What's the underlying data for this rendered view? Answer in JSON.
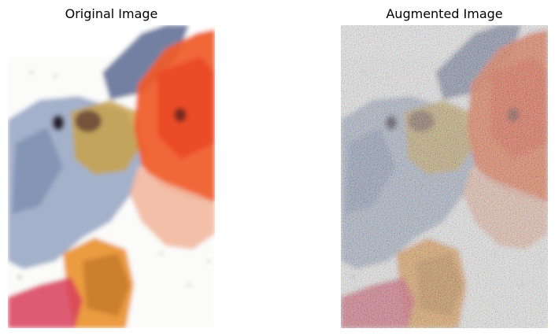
{
  "panels": [
    {
      "title": "Original Image"
    },
    {
      "title": "Augmented Image"
    }
  ],
  "colors": {
    "background": "#ffffff",
    "blue_cell": "#8f9fbc",
    "orange_cell": "#f05a28",
    "yellow_cell": "#c9a24a",
    "red_cell": "#d8405a",
    "nucleus": "#3a2a30"
  }
}
